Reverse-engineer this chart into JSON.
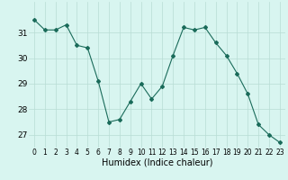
{
  "x": [
    0,
    1,
    2,
    3,
    4,
    5,
    6,
    7,
    8,
    9,
    10,
    11,
    12,
    13,
    14,
    15,
    16,
    17,
    18,
    19,
    20,
    21,
    22,
    23
  ],
  "y": [
    31.5,
    31.1,
    31.1,
    31.3,
    30.5,
    30.4,
    29.1,
    27.5,
    27.6,
    28.3,
    29.0,
    28.4,
    28.9,
    30.1,
    31.2,
    31.1,
    31.2,
    30.6,
    30.1,
    29.4,
    28.6,
    27.4,
    27.0,
    26.7
  ],
  "line_color": "#1a6b5a",
  "marker": "D",
  "marker_size": 2.0,
  "bg_color": "#d8f5f0",
  "grid_color": "#b8dcd4",
  "xlabel": "Humidex (Indice chaleur)",
  "ylim": [
    26.5,
    32.2
  ],
  "xlim": [
    -0.5,
    23.5
  ],
  "yticks": [
    27,
    28,
    29,
    30,
    31
  ],
  "xticks": [
    0,
    1,
    2,
    3,
    4,
    5,
    6,
    7,
    8,
    9,
    10,
    11,
    12,
    13,
    14,
    15,
    16,
    17,
    18,
    19,
    20,
    21,
    22,
    23
  ],
  "tick_fontsize": 5.5,
  "xlabel_fontsize": 7.0,
  "ytick_fontsize": 6.5
}
